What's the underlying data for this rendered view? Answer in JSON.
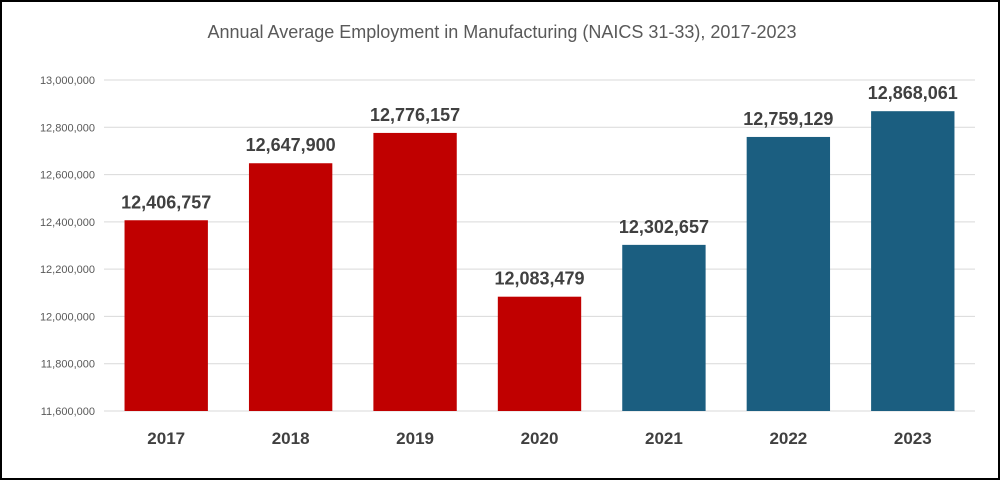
{
  "chart_data": {
    "type": "bar",
    "title": "Annual Average Employment in Manufacturing (NAICS 31-33), 2017-2023",
    "categories": [
      "2017",
      "2018",
      "2019",
      "2020",
      "2021",
      "2022",
      "2023"
    ],
    "values": [
      12406757,
      12647900,
      12776157,
      12083479,
      12302657,
      12759129,
      12868061
    ],
    "data_labels": [
      "12,406,757",
      "12,647,900",
      "12,776,157",
      "12,083,479",
      "12,302,657",
      "12,759,129",
      "12,868,061"
    ],
    "bar_colors": [
      "#C00000",
      "#C00000",
      "#C00000",
      "#C00000",
      "#1B5E80",
      "#1B5E80",
      "#1B5E80"
    ],
    "ylim": [
      11600000,
      13000000
    ],
    "yticks": [
      11600000,
      11800000,
      12000000,
      12200000,
      12400000,
      12600000,
      12800000,
      13000000
    ],
    "ytick_labels": [
      "11,600,000",
      "11,800,000",
      "12,000,000",
      "12,200,000",
      "12,400,000",
      "12,600,000",
      "12,800,000",
      "13,000,000"
    ],
    "xlabel": "",
    "ylabel": "",
    "grid": true,
    "legend": false
  }
}
